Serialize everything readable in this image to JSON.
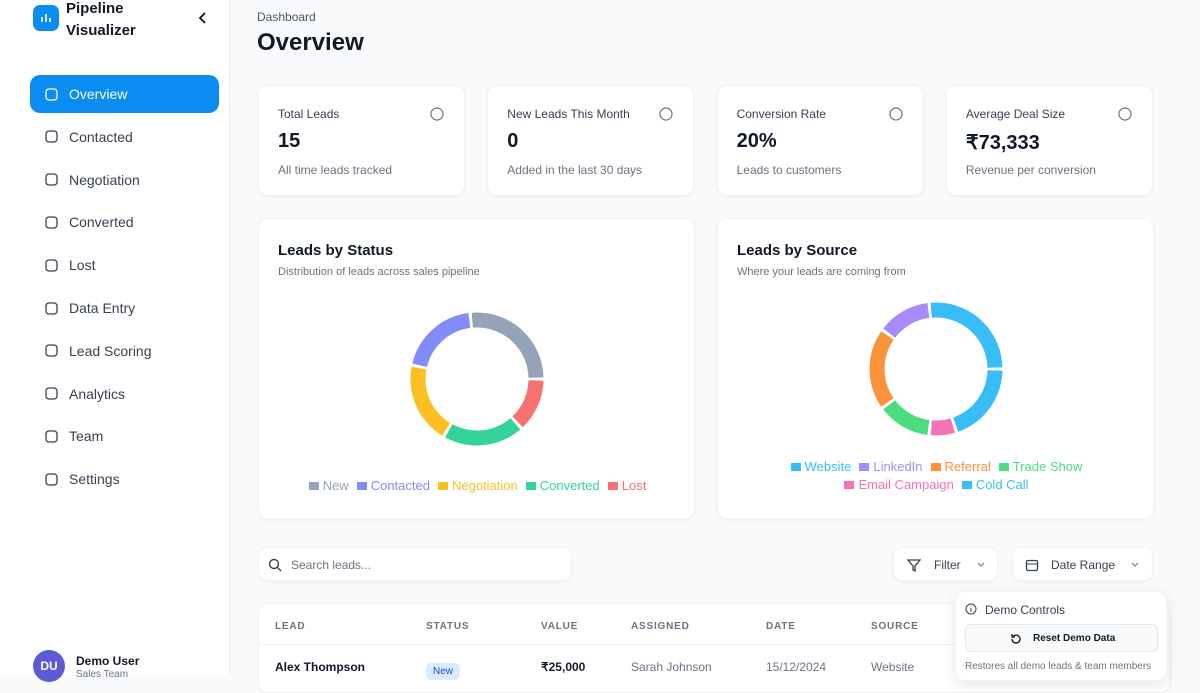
{
  "sidebar": {
    "app_name": "Pipeline Visualizer",
    "items": [
      "Overview",
      "Contacted",
      "Negotiation",
      "Converted",
      "Lost",
      "Data Entry",
      "Lead Scoring",
      "Analytics",
      "Team",
      "Settings"
    ],
    "active": 0,
    "user": {
      "initials": "DU",
      "name": "Demo User",
      "role": "Sales Team"
    }
  },
  "header": {
    "breadcrumb": "Dashboard",
    "title": "Overview"
  },
  "stats": [
    {
      "label": "Total Leads",
      "value": "15",
      "note": "All time leads tracked"
    },
    {
      "label": "New Leads This Month",
      "value": "0",
      "note": "Added in the last 30 days"
    },
    {
      "label": "Conversion Rate",
      "value": "20%",
      "note": "Leads to customers"
    },
    {
      "label": "Average Deal Size",
      "value": "₹73,333",
      "note": "Revenue per conversion"
    }
  ],
  "charts": [
    {
      "type": "donut",
      "title": "Leads by Status",
      "subtitle": "Distribution of leads across sales pipeline",
      "categories": [
        "New",
        "Contacted",
        "Negotiation",
        "Converted",
        "Lost"
      ],
      "colors": [
        "#94a3b8",
        "#818cf8",
        "#fbbf24",
        "#34d399",
        "#f87171"
      ],
      "values": [
        4,
        3,
        3,
        3,
        2
      ]
    },
    {
      "type": "donut",
      "title": "Leads by Source",
      "subtitle": "Where your leads are coming from",
      "categories": [
        "Website",
        "LinkedIn",
        "Referral",
        "Trade Show",
        "Email Campaign",
        "Cold Call"
      ],
      "colors": [
        "#38bdf8",
        "#a78bfa",
        "#fb923c",
        "#4ade80",
        "#f472b6",
        "#38bdf8"
      ],
      "values": [
        4,
        2,
        3,
        2,
        1,
        3
      ]
    }
  ],
  "toolbar": {
    "search_placeholder": "Search leads...",
    "filter": "Filter",
    "date_range": "Date Range"
  },
  "table": {
    "columns": [
      "LEAD",
      "STATUS",
      "VALUE",
      "ASSIGNED",
      "DATE",
      "SOURCE"
    ],
    "rows": [
      [
        "Alex Thompson",
        "New",
        "₹25,000",
        "Sarah Johnson",
        "15/12/2024",
        "Website"
      ]
    ]
  },
  "demo_controls": {
    "title": "Demo Controls",
    "button": "Reset Demo Data",
    "note": "Restores all demo leads & team members"
  }
}
